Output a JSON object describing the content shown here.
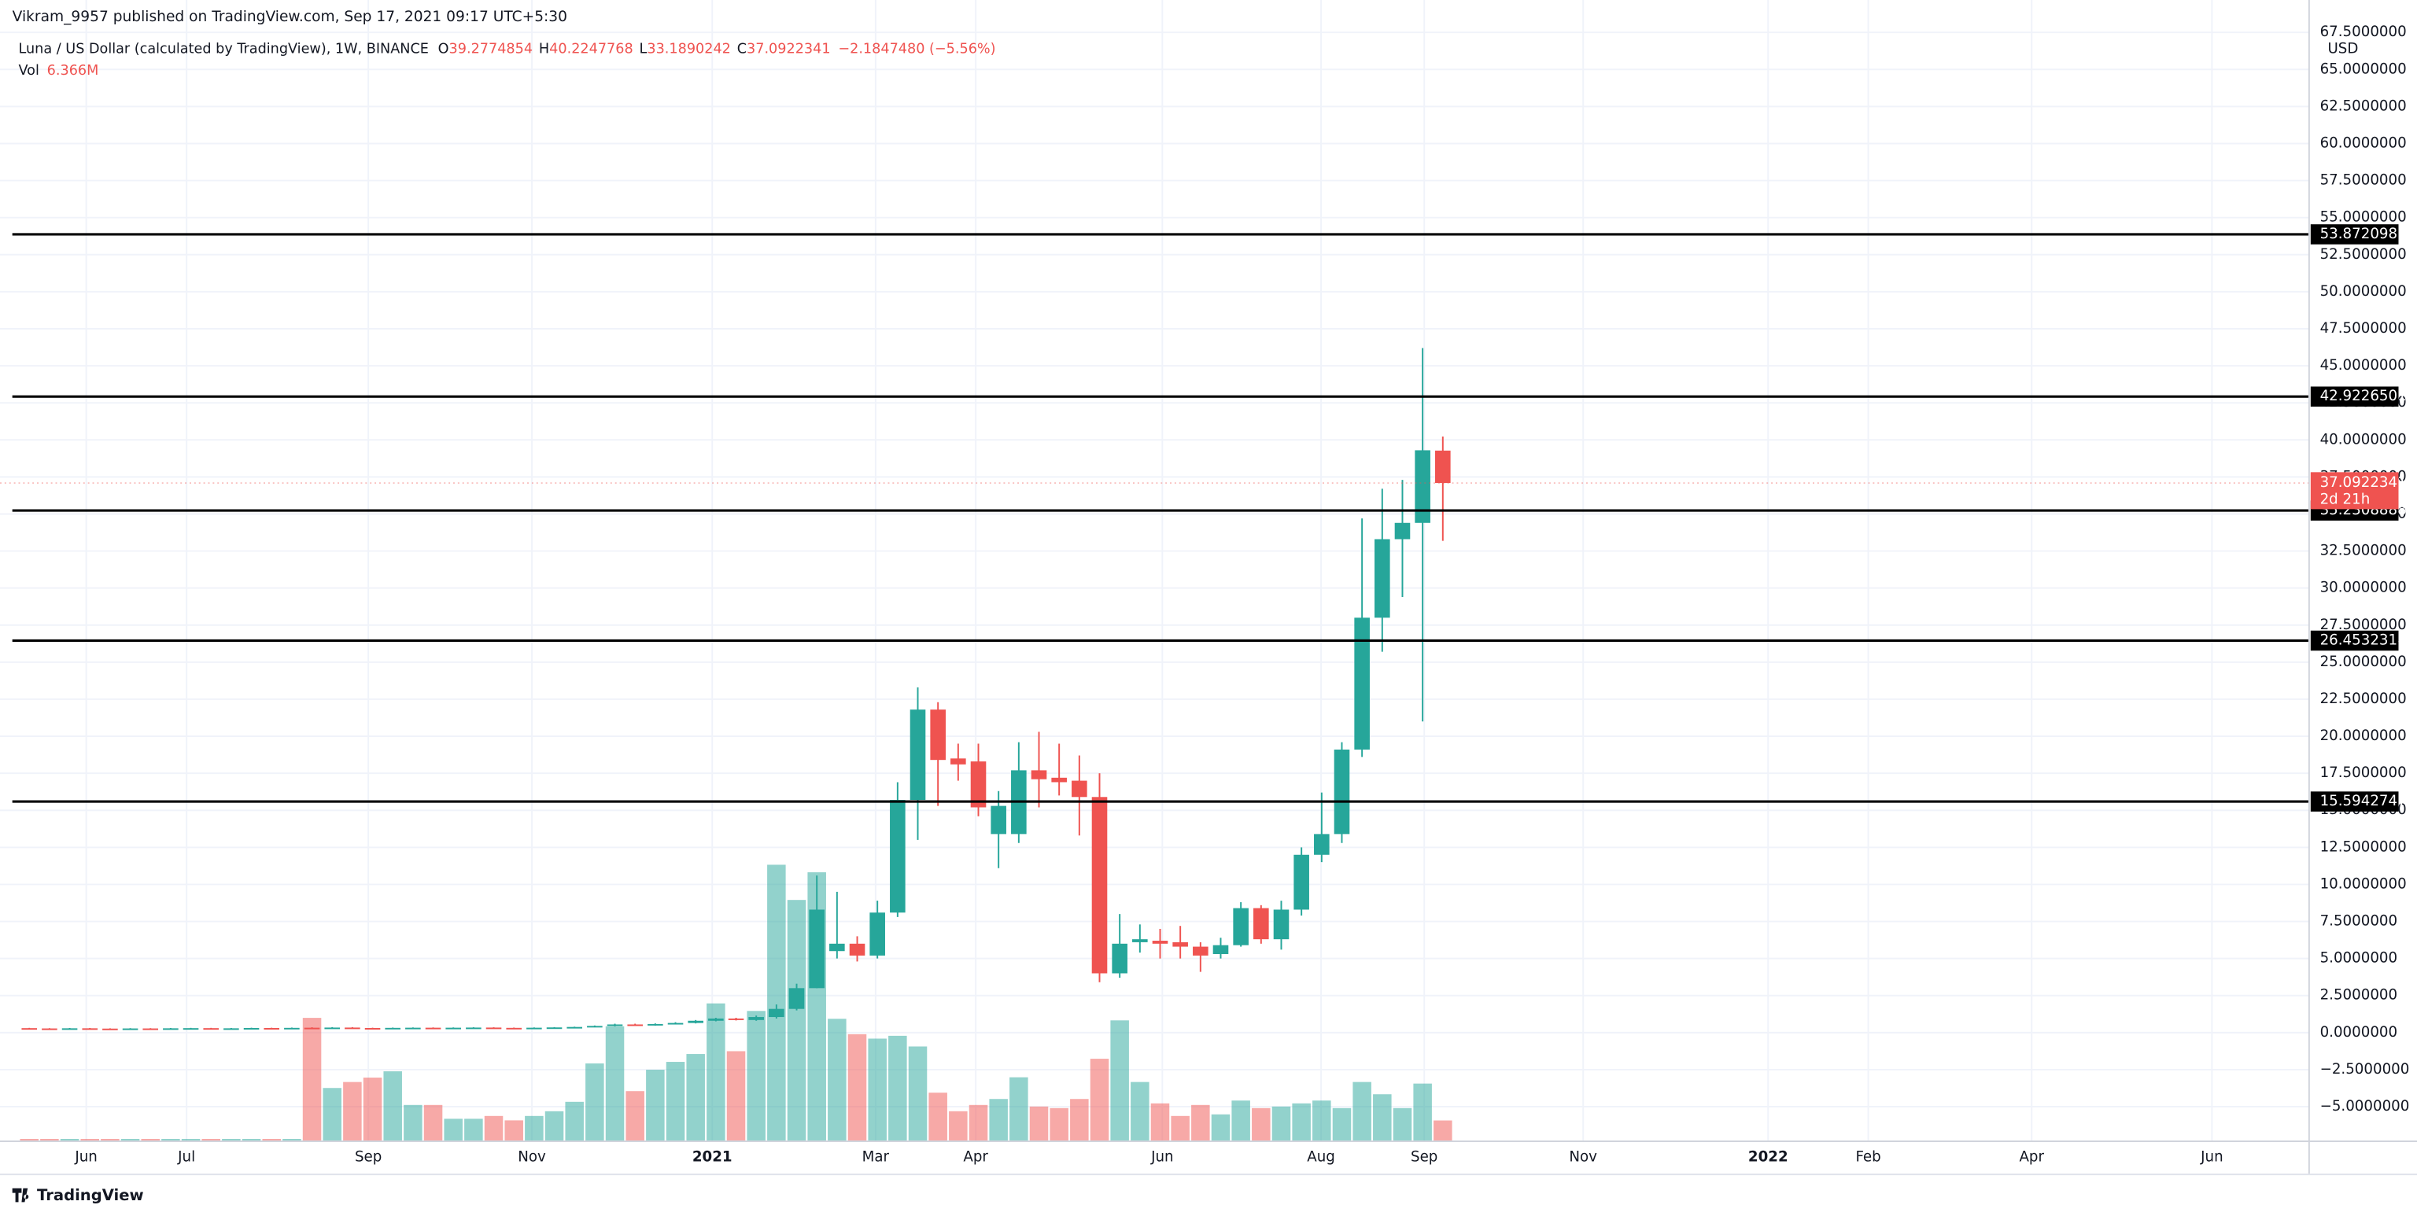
{
  "header": "Vikram_9957 published on TradingView.com, Sep 17, 2021 09:17 UTC+5:30",
  "footer": "TradingView",
  "chart_data": {
    "type": "candlestick",
    "symbol": "Luna / US Dollar (calculated by TradingView), 1W, BINANCE",
    "ohlc_letters": [
      "O",
      "H",
      "L",
      "C"
    ],
    "change": "−2.1847480 (−5.56%)",
    "volume_title": "Vol",
    "volume_value": "6.366M",
    "currency": "USD",
    "countdown": "2d 21h",
    "up_color": "#26a69a",
    "down_color": "#ef5350",
    "level_color": "#000000",
    "grid": true,
    "open": [
      0.3,
      0.28,
      0.27,
      0.29,
      0.27,
      0.26,
      0.28,
      0.27,
      0.29,
      0.3,
      0.28,
      0.29,
      0.31,
      0.3,
      0.33,
      0.3,
      0.34,
      0.31,
      0.29,
      0.32,
      0.33,
      0.31,
      0.33,
      0.34,
      0.32,
      0.31,
      0.33,
      0.35,
      0.38,
      0.45,
      0.55,
      0.5,
      0.58,
      0.65,
      0.8,
      0.95,
      0.85,
      1.05,
      1.6,
      3.0,
      5.5,
      6.0,
      5.2,
      8.1,
      15.7,
      21.8,
      18.5,
      18.3,
      13.4,
      13.4,
      17.7,
      17.2,
      17.0,
      15.9,
      4.0,
      6.1,
      6.2,
      6.1,
      5.8,
      5.3,
      5.9,
      8.4,
      6.3,
      8.3,
      12.0,
      13.4,
      19.1,
      28.0,
      33.3,
      34.4,
      39.2774854
    ],
    "high": [
      0.32,
      0.3,
      0.31,
      0.31,
      0.29,
      0.3,
      0.3,
      0.31,
      0.32,
      0.32,
      0.31,
      0.33,
      0.33,
      0.34,
      0.36,
      0.37,
      0.37,
      0.33,
      0.34,
      0.35,
      0.35,
      0.35,
      0.36,
      0.36,
      0.34,
      0.35,
      0.37,
      0.4,
      0.48,
      0.6,
      0.6,
      0.62,
      0.7,
      0.85,
      1.0,
      1.0,
      1.15,
      1.9,
      3.3,
      10.6,
      9.5,
      6.5,
      8.9,
      16.9,
      23.3,
      22.3,
      19.5,
      19.5,
      16.3,
      19.6,
      20.3,
      19.5,
      18.7,
      17.5,
      8.0,
      7.3,
      7.0,
      7.2,
      6.1,
      6.4,
      8.8,
      8.6,
      8.9,
      12.5,
      16.2,
      19.6,
      34.7,
      36.7,
      37.3,
      46.2,
      40.2247768
    ],
    "low": [
      0.27,
      0.26,
      0.25,
      0.26,
      0.25,
      0.24,
      0.26,
      0.25,
      0.27,
      0.27,
      0.26,
      0.27,
      0.28,
      0.28,
      0.29,
      0.28,
      0.29,
      0.28,
      0.27,
      0.3,
      0.3,
      0.29,
      0.31,
      0.31,
      0.3,
      0.29,
      0.31,
      0.33,
      0.36,
      0.42,
      0.48,
      0.47,
      0.55,
      0.62,
      0.76,
      0.82,
      0.8,
      0.95,
      1.5,
      3.0,
      5.0,
      4.8,
      5.0,
      7.8,
      13.0,
      15.3,
      17.0,
      14.6,
      11.1,
      12.8,
      15.2,
      16.0,
      13.3,
      3.4,
      3.7,
      5.4,
      5.0,
      5.0,
      4.1,
      5.0,
      5.8,
      6.0,
      5.6,
      7.9,
      11.5,
      12.8,
      18.6,
      25.7,
      29.4,
      21.0,
      33.1890242
    ],
    "close": [
      0.28,
      0.27,
      0.29,
      0.27,
      0.26,
      0.28,
      0.27,
      0.29,
      0.3,
      0.28,
      0.29,
      0.31,
      0.3,
      0.32,
      0.3,
      0.34,
      0.31,
      0.29,
      0.32,
      0.33,
      0.31,
      0.33,
      0.34,
      0.32,
      0.31,
      0.33,
      0.35,
      0.38,
      0.45,
      0.55,
      0.5,
      0.58,
      0.65,
      0.8,
      0.95,
      0.85,
      1.05,
      1.6,
      3.0,
      8.3,
      6.0,
      5.2,
      8.1,
      15.7,
      21.8,
      18.4,
      18.1,
      15.2,
      15.3,
      17.7,
      17.1,
      16.9,
      15.9,
      4.0,
      6.0,
      6.3,
      6.0,
      5.8,
      5.2,
      5.9,
      8.4,
      6.3,
      8.3,
      12.0,
      13.4,
      19.1,
      28.0,
      33.3,
      34.4,
      39.3,
      37.0922341
    ],
    "volume": [
      0.5,
      0.5,
      0.5,
      0.5,
      0.5,
      0.5,
      0.5,
      0.5,
      0.5,
      0.5,
      0.5,
      0.5,
      0.5,
      0.5,
      39,
      16.7,
      18.6,
      20,
      22,
      11.3,
      11.3,
      6.9,
      6.9,
      7.8,
      6.4,
      7.8,
      9.3,
      12.3,
      24.5,
      36.3,
      15.7,
      22.5,
      25,
      27.5,
      43.6,
      28.4,
      41.2,
      87.7,
      76.5,
      85.3,
      38.7,
      33.8,
      32.4,
      33.3,
      29.9,
      15.2,
      9.3,
      11.3,
      13.2,
      20.1,
      10.8,
      10.3,
      13.2,
      26,
      38.2,
      18.6,
      11.8,
      7.8,
      11.3,
      8.3,
      12.7,
      10.3,
      10.8,
      11.8,
      12.7,
      10.3,
      18.6,
      14.7,
      10.3,
      18.1,
      6.366
    ],
    "levels": [
      53.8720985,
      42.9226501,
      35.2308888,
      26.4532318,
      15.5942747
    ],
    "xlim": [
      -0.84,
      112.9
    ],
    "xticks": [
      {
        "value": 2.82,
        "label": "Jun"
      },
      {
        "value": 7.79,
        "label": "Jul"
      },
      {
        "value": 16.79,
        "label": "Sep"
      },
      {
        "value": 24.89,
        "label": "Nov"
      },
      {
        "value": 33.82,
        "label": "2021"
      },
      {
        "value": 41.91,
        "label": "Mar"
      },
      {
        "value": 46.87,
        "label": "Apr"
      },
      {
        "value": 56.11,
        "label": "Jun"
      },
      {
        "value": 63.97,
        "label": "Aug"
      },
      {
        "value": 69.08,
        "label": "Sep"
      },
      {
        "value": 76.95,
        "label": "Nov"
      },
      {
        "value": 86.11,
        "label": "2022"
      },
      {
        "value": 91.07,
        "label": "Feb"
      },
      {
        "value": 99.16,
        "label": "Apr"
      },
      {
        "value": 108.09,
        "label": "Jun"
      }
    ],
    "ylim": [
      -7.28,
      68.23
    ],
    "yticks": [
      {
        "value": 67.5,
        "label": "67.5000000"
      },
      {
        "value": 65,
        "label": "65.0000000"
      },
      {
        "value": 62.5,
        "label": "62.5000000"
      },
      {
        "value": 60,
        "label": "60.0000000"
      },
      {
        "value": 57.5,
        "label": "57.5000000"
      },
      {
        "value": 55,
        "label": "55.0000000"
      },
      {
        "value": 52.5,
        "label": "52.5000000"
      },
      {
        "value": 50,
        "label": "50.0000000"
      },
      {
        "value": 47.5,
        "label": "47.5000000"
      },
      {
        "value": 45,
        "label": "45.0000000"
      },
      {
        "value": 42.5,
        "label": "42.5000000"
      },
      {
        "value": 40,
        "label": "40.0000000"
      },
      {
        "value": 37.5,
        "label": "37.5000000"
      },
      {
        "value": 35,
        "label": "35.0000000"
      },
      {
        "value": 32.5,
        "label": "32.5000000"
      },
      {
        "value": 30,
        "label": "30.0000000"
      },
      {
        "value": 27.5,
        "label": "27.5000000"
      },
      {
        "value": 25,
        "label": "25.0000000"
      },
      {
        "value": 22.5,
        "label": "22.5000000"
      },
      {
        "value": 20,
        "label": "20.0000000"
      },
      {
        "value": 17.5,
        "label": "17.5000000"
      },
      {
        "value": 15,
        "label": "15.0000000"
      },
      {
        "value": 12.5,
        "label": "12.5000000"
      },
      {
        "value": 10,
        "label": "10.0000000"
      },
      {
        "value": 7.5,
        "label": "7.5000000"
      },
      {
        "value": 5,
        "label": "5.0000000"
      },
      {
        "value": 2.5,
        "label": "2.5000000"
      },
      {
        "value": 0,
        "label": "0.0000000"
      },
      {
        "value": -2.5,
        "label": "−2.5000000"
      },
      {
        "value": -5,
        "label": "−5.0000000"
      }
    ]
  }
}
